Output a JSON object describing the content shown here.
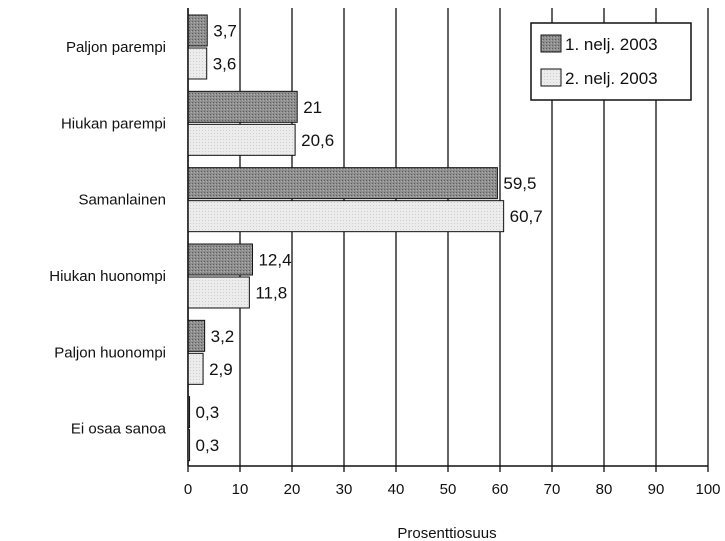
{
  "chart_data": {
    "type": "bar",
    "orientation": "horizontal",
    "categories": [
      "Paljon parempi",
      "Hiukan parempi",
      "Samanlainen",
      "Hiukan huonompi",
      "Paljon huonompi",
      "Ei osaa sanoa"
    ],
    "series": [
      {
        "name": "1. nelj. 2003",
        "values": [
          3.7,
          21,
          59.5,
          12.4,
          3.2,
          0.3
        ],
        "labels": [
          "3,7",
          "21",
          "59,5",
          "12,4",
          "3,2",
          "0,3"
        ],
        "color": "#8a8a8a"
      },
      {
        "name": "2. nelj. 2003",
        "values": [
          3.6,
          20.6,
          60.7,
          11.8,
          2.9,
          0.3
        ],
        "labels": [
          "3,6",
          "20,6",
          "60,7",
          "11,8",
          "2,9",
          "0,3"
        ],
        "color": "#e6e6e6"
      }
    ],
    "xlabel": "Prosenttiosuus",
    "xlim": [
      0,
      100
    ],
    "xticks": [
      0,
      10,
      20,
      30,
      40,
      50,
      60,
      70,
      80,
      90,
      100
    ],
    "grid": "vertical",
    "legend": "top-right"
  }
}
